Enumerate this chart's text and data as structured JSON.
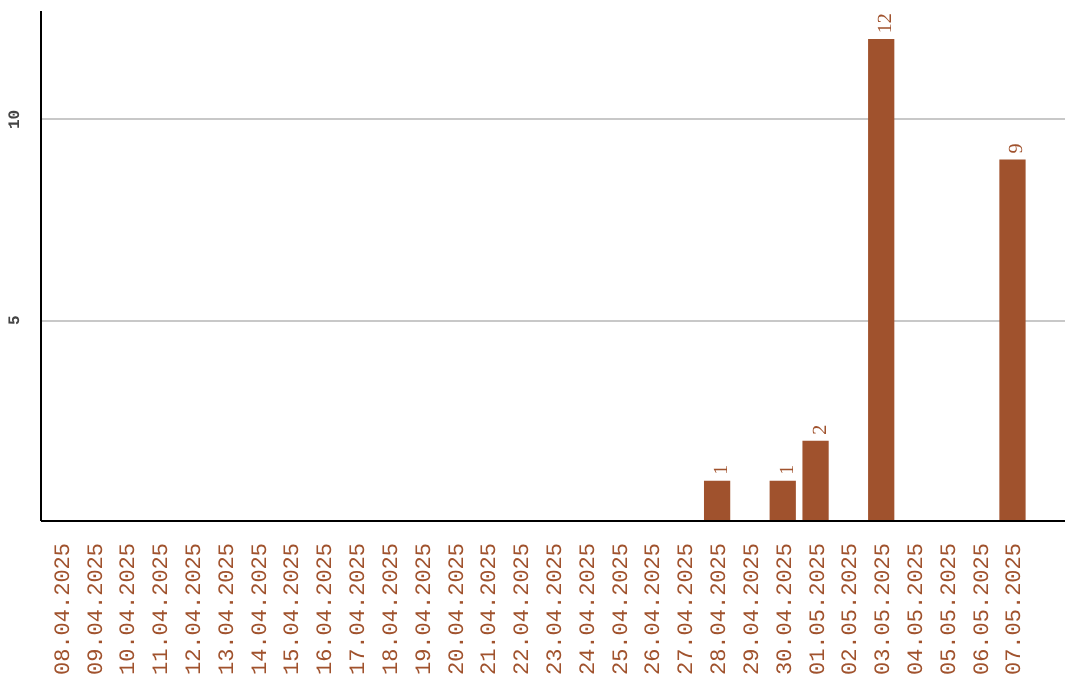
{
  "chart_data": {
    "type": "bar",
    "categories": [
      "08.04.2025",
      "09.04.2025",
      "10.04.2025",
      "11.04.2025",
      "12.04.2025",
      "13.04.2025",
      "14.04.2025",
      "15.04.2025",
      "16.04.2025",
      "17.04.2025",
      "18.04.2025",
      "19.04.2025",
      "20.04.2025",
      "21.04.2025",
      "22.04.2025",
      "23.04.2025",
      "24.04.2025",
      "25.04.2025",
      "26.04.2025",
      "27.04.2025",
      "28.04.2025",
      "29.04.2025",
      "30.04.2025",
      "01.05.2025",
      "02.05.2025",
      "03.05.2025",
      "04.05.2025",
      "05.05.2025",
      "06.05.2025",
      "07.05.2025"
    ],
    "values": [
      0,
      0,
      0,
      0,
      0,
      0,
      0,
      0,
      0,
      0,
      0,
      0,
      0,
      0,
      0,
      0,
      0,
      0,
      0,
      0,
      1,
      0,
      1,
      2,
      0,
      12,
      0,
      0,
      0,
      9
    ],
    "value_labels": [
      null,
      null,
      null,
      null,
      null,
      null,
      null,
      null,
      null,
      null,
      null,
      null,
      null,
      null,
      null,
      null,
      null,
      null,
      null,
      null,
      "1",
      null,
      "1",
      "2",
      null,
      "12",
      null,
      null,
      null,
      "9"
    ],
    "color": "#a0522d",
    "ylim": [
      0,
      12.7
    ],
    "yticks": [
      5,
      10
    ],
    "grid": "y"
  }
}
